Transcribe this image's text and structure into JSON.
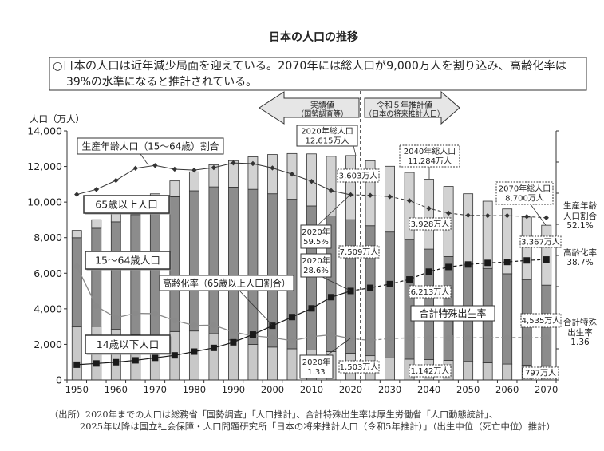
{
  "summary": {
    "line1": "○日本の人口は近年減少局面を迎えている。2070年には総人口が9,000万人を割り込み、高齢化率は",
    "line2": "39%の水準になると推計されている。"
  },
  "period_arrows": {
    "actual": {
      "line1": "実績値",
      "line2": "（国勢調査等）"
    },
    "projection": {
      "line1": "令和５年推計値",
      "line2": "（日本の将来推計人口）"
    }
  },
  "footnote": {
    "line1": "（出所）2020年までの人口は総務省「国勢調査」「人口推計」、合計特殊出生率は厚生労働省「人口動態統計」、",
    "line2": "2025年以降は国立社会保障・人口問題研究所「日本の将来推計人口（令和5年推計）」（出生中位（死亡中位）推計）"
  },
  "chart_data": {
    "type": "bar",
    "title": "日本の人口の推移",
    "xlabel": "",
    "ylabel": "人口（万人）",
    "ylim": [
      0,
      14000
    ],
    "yticks": [
      0,
      2000,
      4000,
      6000,
      8000,
      10000,
      12000,
      14000
    ],
    "ytick_labels": [
      "0",
      "2,000",
      "4,000",
      "6,000",
      "8,000",
      "10,000",
      "12,000",
      "14,000"
    ],
    "y2lim": [
      0,
      80
    ],
    "y2ticks": [
      0,
      10,
      20,
      30,
      40,
      50,
      60,
      70,
      80
    ],
    "fertility_lim": [
      0,
      8
    ],
    "grid": false,
    "projection_from": 2025,
    "categories": [
      1950,
      1955,
      1960,
      1965,
      1970,
      1975,
      1980,
      1985,
      1990,
      1995,
      2000,
      2005,
      2010,
      2015,
      2020,
      2025,
      2030,
      2035,
      2040,
      2045,
      2050,
      2055,
      2060,
      2065,
      2070
    ],
    "xtick_labels": [
      "1950",
      "1960",
      "1970",
      "1980",
      "1990",
      "2000",
      "2010",
      "2020",
      "2030",
      "2040",
      "2050",
      "2060",
      "2070"
    ],
    "bar_colors": [
      "#c8c8c8",
      "#8c8c8c",
      "#d2d2d2"
    ],
    "line_colors": [
      "#333333",
      "#1a1a1a",
      "#8a8a8a"
    ],
    "series": [
      {
        "name": "14歳以下人口",
        "type": "stacked-bar",
        "axis": "left",
        "unit": "万人",
        "values": [
          2979,
          3012,
          2843,
          2553,
          2515,
          2722,
          2751,
          2603,
          2249,
          2001,
          1847,
          1752,
          1680,
          1595,
          1503,
          1363,
          1240,
          1169,
          1142,
          1103,
          1041,
          966,
          893,
          836,
          797
        ]
      },
      {
        "name": "15～64歳人口",
        "type": "stacked-bar",
        "axis": "left",
        "unit": "万人",
        "values": [
          5017,
          5517,
          6047,
          6744,
          7212,
          7581,
          7883,
          8251,
          8590,
          8716,
          8622,
          8409,
          8103,
          7629,
          7509,
          7310,
          7076,
          6722,
          6213,
          5832,
          5540,
          5307,
          5078,
          4809,
          4535
        ]
      },
      {
        "name": "65歳以上人口",
        "type": "stacked-bar",
        "axis": "left",
        "unit": "万人",
        "values": [
          411,
          479,
          540,
          624,
          739,
          887,
          1065,
          1247,
          1489,
          1826,
          2204,
          2567,
          2925,
          3347,
          3603,
          3653,
          3696,
          3773,
          3928,
          3945,
          3888,
          3778,
          3644,
          3513,
          3367
        ]
      },
      {
        "name": "生産年齢人口（15～64歳）割合",
        "type": "line",
        "axis": "right",
        "unit": "%",
        "values": [
          59.6,
          61.2,
          64.1,
          68.0,
          68.9,
          67.7,
          67.4,
          68.2,
          69.7,
          69.5,
          68.1,
          66.1,
          63.8,
          60.8,
          59.5,
          59.3,
          58.9,
          57.6,
          55.1,
          53.6,
          52.9,
          52.8,
          52.8,
          52.5,
          52.1
        ]
      },
      {
        "name": "高齢化率（65歳以上人口割合）",
        "type": "line",
        "axis": "right",
        "unit": "%",
        "values": [
          4.9,
          5.3,
          5.7,
          6.3,
          7.1,
          7.9,
          9.1,
          10.3,
          12.1,
          14.6,
          17.4,
          20.2,
          23.0,
          26.6,
          28.6,
          29.6,
          30.8,
          32.3,
          34.8,
          36.3,
          37.1,
          37.6,
          37.9,
          38.4,
          38.7
        ]
      },
      {
        "name": "合計特殊出生率",
        "type": "line",
        "axis": "right",
        "values": [
          3.65,
          2.37,
          2.0,
          2.14,
          2.13,
          1.91,
          1.75,
          1.76,
          1.54,
          1.42,
          1.36,
          1.26,
          1.39,
          1.45,
          1.33,
          1.27,
          1.33,
          1.35,
          1.35,
          1.35,
          1.35,
          1.36,
          1.36,
          1.36,
          1.36
        ]
      }
    ],
    "end_labels": [
      {
        "lines": [
          "生産年齢",
          "人口割合",
          "52.1%"
        ]
      },
      {
        "lines": [
          "高齢化率",
          "38.7%"
        ]
      },
      {
        "lines": [
          "合計特殊",
          "出生率",
          "1.36"
        ]
      }
    ],
    "annotations": [
      {
        "lines": [
          "2020年総人口",
          "12,615万人"
        ]
      },
      {
        "lines": [
          "3,603万人"
        ]
      },
      {
        "lines": [
          "7,509万人"
        ]
      },
      {
        "lines": [
          "1,503万人"
        ]
      },
      {
        "lines": [
          "2020年",
          "59.5%"
        ]
      },
      {
        "lines": [
          "2020年",
          "28.6%"
        ]
      },
      {
        "lines": [
          "2020年",
          "1.33"
        ]
      },
      {
        "lines": [
          "2040年総人口",
          "11,284万人"
        ]
      },
      {
        "lines": [
          "3,928万人"
        ]
      },
      {
        "lines": [
          "6,213万人"
        ]
      },
      {
        "lines": [
          "1,142万人"
        ]
      },
      {
        "lines": [
          "2070年総人口",
          "8,700万人"
        ]
      },
      {
        "lines": [
          "3,367万人"
        ]
      },
      {
        "lines": [
          "4,535万人"
        ]
      },
      {
        "lines": [
          "797万人"
        ]
      }
    ]
  }
}
